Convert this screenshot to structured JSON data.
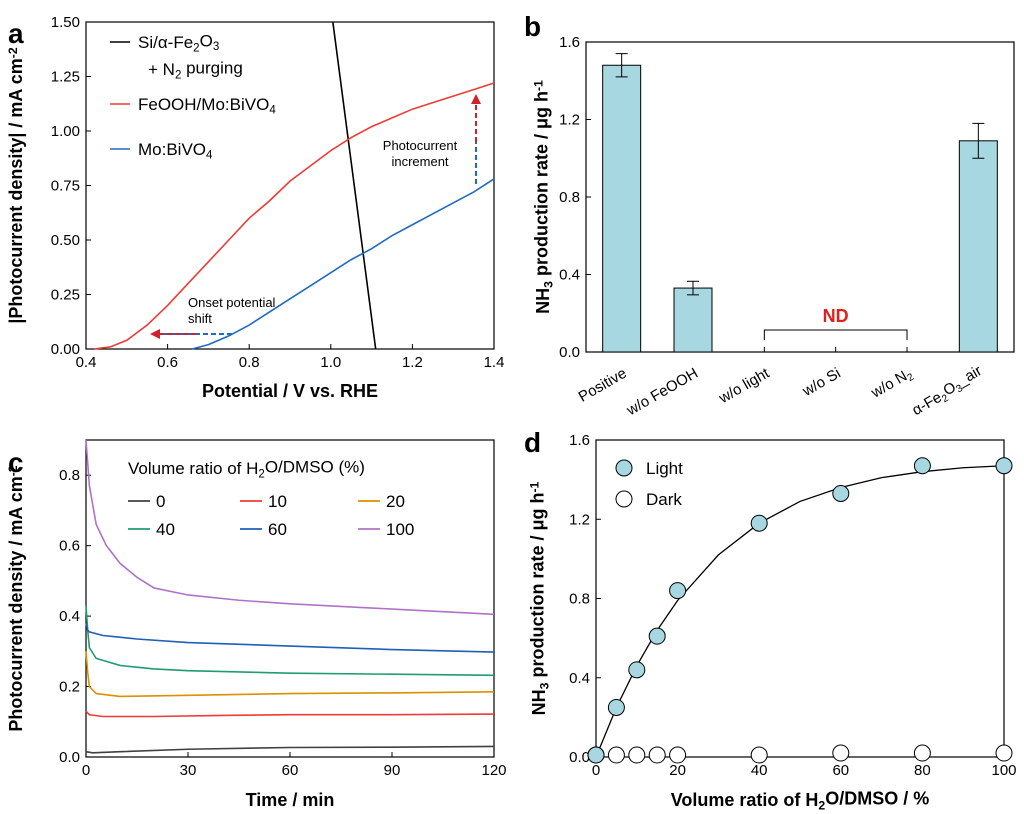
{
  "chart_data": [
    {
      "panel": "a",
      "type": "line",
      "xlabel": "Potential / V vs. RHE",
      "ylabel": "|Photocurrent density| / mA cm⁻²",
      "xlim": [
        0.4,
        1.4
      ],
      "ylim": [
        0,
        1.5
      ],
      "xticks": [
        "0.4",
        "0.6",
        "0.8",
        "1.0",
        "1.2",
        "1.4"
      ],
      "yticks": [
        "0.00",
        "0.25",
        "0.50",
        "0.75",
        "1.00",
        "1.25",
        "1.50"
      ],
      "legend_position": "top-left",
      "series": [
        {
          "name": "Si/α-Fe₂O₃ + N₂ purging",
          "color": "#000000",
          "x": [
            1.005,
            1.11
          ],
          "y": [
            1.5,
            0.0
          ]
        },
        {
          "name": "FeOOH/Mo:BiVO₄",
          "color": "#ee3b35",
          "x": [
            0.42,
            0.46,
            0.5,
            0.55,
            0.6,
            0.65,
            0.7,
            0.75,
            0.8,
            0.85,
            0.9,
            0.95,
            1.0,
            1.05,
            1.1,
            1.15,
            1.2,
            1.25,
            1.3,
            1.35,
            1.4
          ],
          "y": [
            0.0,
            0.01,
            0.04,
            0.11,
            0.2,
            0.3,
            0.4,
            0.5,
            0.6,
            0.68,
            0.77,
            0.84,
            0.91,
            0.97,
            1.02,
            1.06,
            1.1,
            1.13,
            1.16,
            1.19,
            1.22
          ]
        },
        {
          "name": "Mo:BiVO₄",
          "color": "#1f6ac2",
          "x": [
            0.66,
            0.7,
            0.75,
            0.8,
            0.85,
            0.9,
            0.95,
            1.0,
            1.05,
            1.1,
            1.15,
            1.2,
            1.25,
            1.3,
            1.35,
            1.4
          ],
          "y": [
            0.0,
            0.02,
            0.06,
            0.11,
            0.17,
            0.23,
            0.29,
            0.35,
            0.41,
            0.46,
            0.52,
            0.57,
            0.62,
            0.67,
            0.72,
            0.78
          ]
        }
      ],
      "annotations": [
        {
          "text_lines": [
            "Onset potential",
            "shift"
          ]
        },
        {
          "text_lines": [
            "Photocurrent",
            "increment"
          ]
        }
      ]
    },
    {
      "panel": "b",
      "type": "bar",
      "ylabel": "NH₃ production rate / μg h⁻¹",
      "ylim": [
        0,
        1.6
      ],
      "yticks": [
        "0.0",
        "0.4",
        "0.8",
        "1.2",
        "1.6"
      ],
      "bar_color": "#a7d7e0",
      "categories": [
        "Positive",
        "w/o FeOOH",
        "w/o light",
        "w/o Si",
        "w/o N₂",
        "α-Fe₂O₃_air"
      ],
      "values": [
        1.48,
        0.33,
        null,
        null,
        null,
        1.09
      ],
      "errors": [
        0.06,
        0.035,
        null,
        null,
        null,
        0.09
      ],
      "annotation": "ND",
      "annotation_color": "#e0201b"
    },
    {
      "panel": "c",
      "type": "line",
      "xlabel": "Time / min",
      "ylabel": "Photocurrent density / mA cm⁻²",
      "xlim": [
        0,
        120
      ],
      "ylim": [
        0,
        0.9
      ],
      "xticks": [
        "0",
        "30",
        "60",
        "90",
        "120"
      ],
      "yticks": [
        "0.0",
        "0.2",
        "0.4",
        "0.6",
        "0.8"
      ],
      "legend_title": "Volume ratio of H₂O/DMSO (%)",
      "series": [
        {
          "name": "0",
          "color": "#404040",
          "x": [
            0,
            2,
            10,
            30,
            60,
            90,
            120
          ],
          "y": [
            0.015,
            0.012,
            0.015,
            0.022,
            0.027,
            0.028,
            0.03
          ]
        },
        {
          "name": "10",
          "color": "#ee3b35",
          "x": [
            0,
            1,
            5,
            20,
            40,
            60,
            90,
            120
          ],
          "y": [
            0.13,
            0.12,
            0.115,
            0.115,
            0.118,
            0.12,
            0.12,
            0.122
          ]
        },
        {
          "name": "20",
          "color": "#d99100",
          "x": [
            0,
            0.5,
            1,
            3,
            10,
            30,
            60,
            90,
            120
          ],
          "y": [
            0.3,
            0.24,
            0.2,
            0.18,
            0.172,
            0.175,
            0.18,
            0.182,
            0.185
          ]
        },
        {
          "name": "40",
          "color": "#1e9d6e",
          "x": [
            0,
            0.5,
            1,
            3,
            10,
            20,
            30,
            60,
            90,
            120
          ],
          "y": [
            0.43,
            0.36,
            0.31,
            0.28,
            0.26,
            0.25,
            0.245,
            0.238,
            0.235,
            0.232
          ]
        },
        {
          "name": "60",
          "color": "#1f5fb8",
          "x": [
            0,
            0.5,
            1,
            5,
            15,
            30,
            60,
            90,
            120
          ],
          "y": [
            0.38,
            0.36,
            0.355,
            0.345,
            0.335,
            0.325,
            0.315,
            0.305,
            0.298
          ]
        },
        {
          "name": "100",
          "color": "#b072c8",
          "x": [
            0,
            1,
            3,
            6,
            10,
            15,
            20,
            30,
            45,
            60,
            90,
            120
          ],
          "y": [
            0.9,
            0.77,
            0.66,
            0.6,
            0.55,
            0.51,
            0.48,
            0.46,
            0.445,
            0.435,
            0.42,
            0.405
          ]
        }
      ]
    },
    {
      "panel": "d",
      "type": "scatter",
      "xlabel": "Volume ratio of H₂O/DMSO / %",
      "ylabel": "NH₃ production rate / μg h⁻¹",
      "xlim": [
        0,
        100
      ],
      "ylim": [
        0,
        1.6
      ],
      "xticks": [
        "0",
        "20",
        "40",
        "60",
        "80",
        "100"
      ],
      "yticks": [
        "0.0",
        "0.4",
        "0.8",
        "1.2",
        "1.6"
      ],
      "legend_position": "top-left",
      "series": [
        {
          "name": "Light",
          "fill": "#a7d7e0",
          "x": [
            0,
            5,
            10,
            15,
            20,
            40,
            60,
            80,
            100
          ],
          "y": [
            0.01,
            0.25,
            0.44,
            0.61,
            0.84,
            1.18,
            1.33,
            1.47,
            1.47
          ]
        },
        {
          "name": "Dark",
          "fill": "#ffffff",
          "x": [
            0,
            5,
            10,
            15,
            20,
            40,
            60,
            80,
            100
          ],
          "y": [
            0.01,
            0.01,
            0.01,
            0.01,
            0.01,
            0.01,
            0.02,
            0.02,
            0.02
          ]
        }
      ],
      "fit": {
        "x": [
          0,
          5,
          10,
          15,
          20,
          30,
          40,
          50,
          60,
          70,
          80,
          90,
          100
        ],
        "y": [
          0.0,
          0.25,
          0.46,
          0.64,
          0.79,
          1.02,
          1.18,
          1.29,
          1.36,
          1.41,
          1.44,
          1.46,
          1.47
        ]
      }
    }
  ]
}
